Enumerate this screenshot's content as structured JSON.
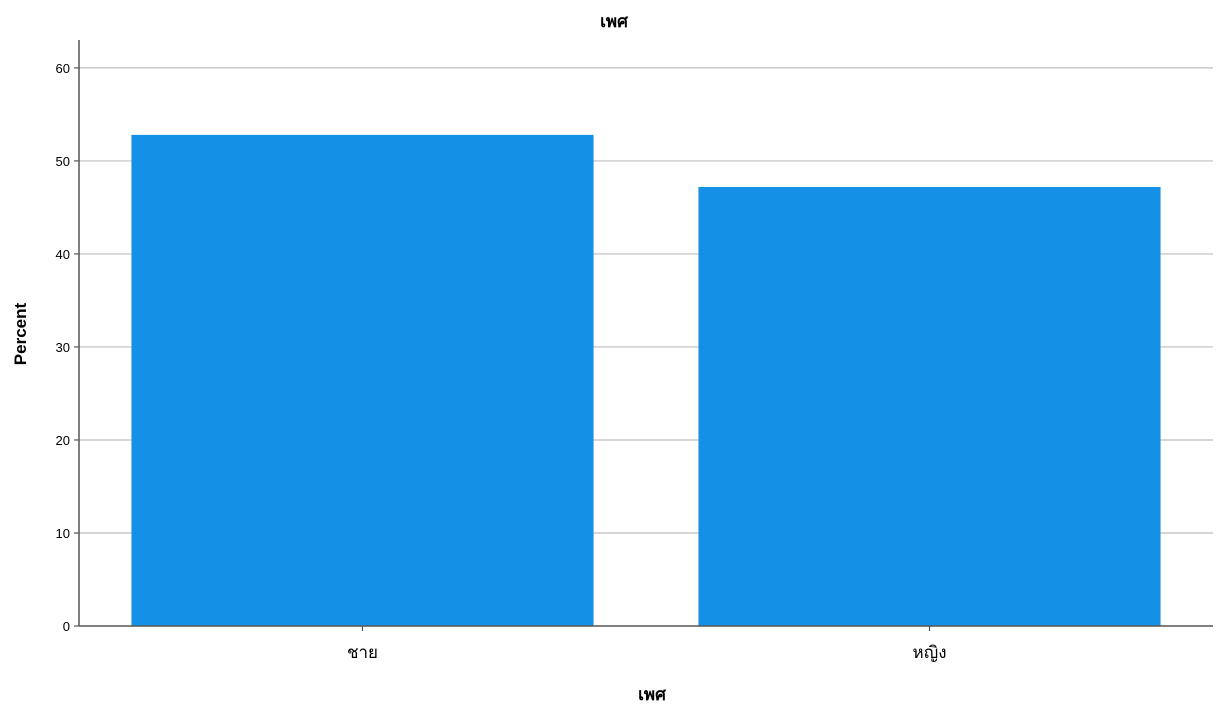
{
  "chart_data": {
    "type": "bar",
    "title": "เพศ",
    "xlabel": "เพศ",
    "ylabel": "Percent",
    "categories": [
      "ชาย",
      "หญิง"
    ],
    "values": [
      52.8,
      47.2
    ],
    "ylim": [
      0,
      63
    ],
    "yticks": [
      0,
      10,
      20,
      30,
      40,
      50,
      60
    ],
    "grid": true,
    "legend": "none",
    "bar_color": "#1491E6"
  }
}
